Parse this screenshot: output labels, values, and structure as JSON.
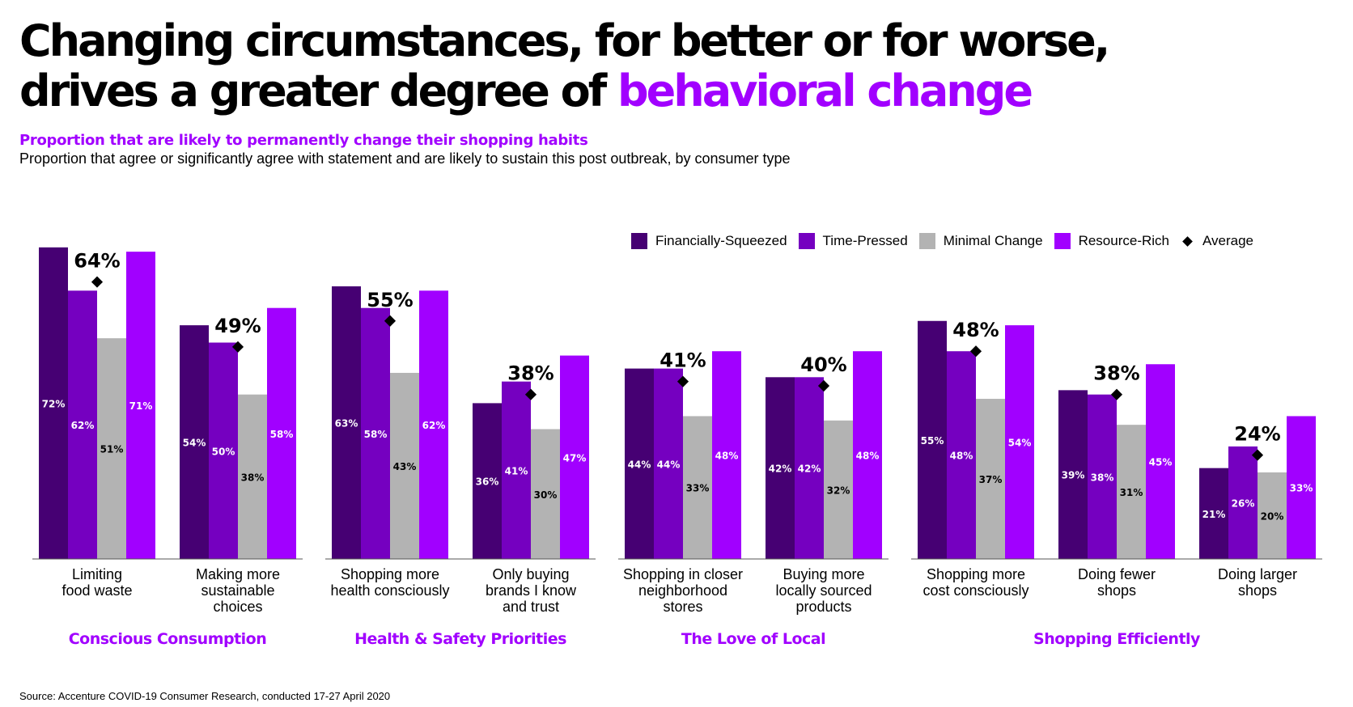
{
  "header": {
    "title_line1": "Changing circumstances, for better or for worse,",
    "title_line2_pre": "drives a greater degree of ",
    "title_line2_highlight": "behavioral change",
    "subtitle": "Proportion that are likely to permanently change their shopping habits",
    "subtitle2": "Proportion that agree or significantly agree with statement and are likely to sustain this post outbreak, by consumer type"
  },
  "legend": {
    "items": [
      {
        "label": "Financially-Squeezed",
        "color": "#460073"
      },
      {
        "label": "Time-Pressed",
        "color": "#7500c0"
      },
      {
        "label": "Minimal Change",
        "color": "#b3b3b3"
      },
      {
        "label": "Resource-Rich",
        "color": "#a100ff"
      }
    ],
    "average_label": "Average"
  },
  "footer": {
    "source": "Source: Accenture COVID-19 Consumer Research, conducted 17-27 April 2020"
  },
  "colors": {
    "accent": "#a100ff",
    "financially_squeezed": "#460073",
    "time_pressed": "#7500c0",
    "minimal_change": "#b3b3b3",
    "resource_rich": "#a100ff"
  },
  "chart_data": {
    "type": "bar",
    "title": "Proportion that are likely to permanently change their shopping habits",
    "ylim": [
      0,
      80
    ],
    "series_names": [
      "Financially-Squeezed",
      "Time-Pressed",
      "Minimal Change",
      "Resource-Rich"
    ],
    "groups": [
      {
        "name": "Conscious Consumption",
        "categories": [
          {
            "label": [
              "Limiting",
              "food waste"
            ],
            "values": [
              72,
              62,
              51,
              71
            ],
            "average": 64
          },
          {
            "label": [
              "Making more",
              "sustainable",
              "choices"
            ],
            "values": [
              54,
              50,
              38,
              58
            ],
            "average": 49
          }
        ]
      },
      {
        "name": "Health & Safety Priorities",
        "categories": [
          {
            "label": [
              "Shopping more",
              "health consciously"
            ],
            "values": [
              63,
              58,
              43,
              62
            ],
            "average": 55
          },
          {
            "label": [
              "Only buying",
              "brands I know",
              "and trust"
            ],
            "values": [
              36,
              41,
              30,
              47
            ],
            "average": 38
          }
        ]
      },
      {
        "name": "The Love of Local",
        "categories": [
          {
            "label": [
              "Shopping in closer",
              "neighborhood",
              "stores"
            ],
            "values": [
              44,
              44,
              33,
              48
            ],
            "average": 41
          },
          {
            "label": [
              "Buying more",
              "locally sourced",
              "products"
            ],
            "values": [
              42,
              42,
              32,
              48
            ],
            "average": 40
          }
        ]
      },
      {
        "name": "Shopping Efficiently",
        "categories": [
          {
            "label": [
              "Shopping more",
              "cost consciously"
            ],
            "values": [
              55,
              48,
              37,
              54
            ],
            "average": 48
          },
          {
            "label": [
              "Doing fewer",
              "shops"
            ],
            "values": [
              39,
              38,
              31,
              45
            ],
            "average": 38
          },
          {
            "label": [
              "Doing larger",
              "shops"
            ],
            "values": [
              21,
              26,
              20,
              33
            ],
            "average": 24
          }
        ]
      }
    ]
  }
}
